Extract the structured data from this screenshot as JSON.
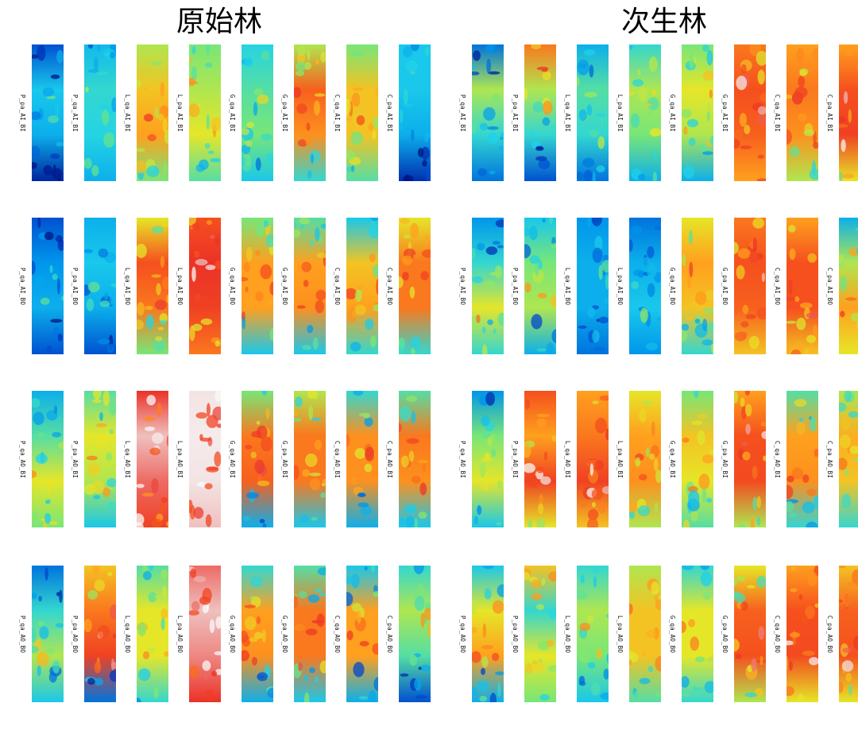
{
  "panels": [
    {
      "title": "原始林",
      "rows": [
        [
          "P_pa_AI_BI",
          "P_qa_AI_BI",
          "L_qa_AI_BI",
          "L_pa_AI_BI",
          "G_qa_AI_BI",
          "G_pa_AI_BI",
          "C_qa_AI_BI",
          "C_pa_AI_BI"
        ],
        [
          "P_qa_AI_BO",
          "P_pa_AI_BO",
          "L_qa_AI_BO",
          "L_pa_AI_BO",
          "G_qa_AI_BO",
          "G_pa_AI_BO",
          "C_qa_AI_BO",
          "C_pa_AI_BO"
        ],
        [
          "P_qa_AO_BI",
          "P_pa_AO_BI",
          "L_qa_AO_BI",
          "L_pa_AO_BI",
          "G_qa_AO_BI",
          "G_pa_AO_BI",
          "C_qa_AO_BI",
          "C_pa_AO_BI"
        ],
        [
          "P_qa_AO_BO",
          "P_pa_AO_BO",
          "L_qa_AO_BO",
          "L_pa_AO_BO",
          "G_qa_AO_BO",
          "G_pa_AO_BO",
          "C_qa_AO_BO",
          "C_pa_AO_BO"
        ]
      ],
      "levels": [
        [
          [
            0.15,
            0.35,
            0.3,
            0.05
          ],
          [
            0.32,
            0.4,
            0.38,
            0.3
          ],
          [
            0.55,
            0.65,
            0.7,
            0.5
          ],
          [
            0.5,
            0.55,
            0.6,
            0.45
          ],
          [
            0.38,
            0.45,
            0.5,
            0.35
          ],
          [
            0.55,
            0.78,
            0.72,
            0.4
          ],
          [
            0.5,
            0.65,
            0.65,
            0.45
          ],
          [
            0.35,
            0.35,
            0.3,
            0.08
          ]
        ],
        [
          [
            0.15,
            0.25,
            0.3,
            0.15
          ],
          [
            0.3,
            0.35,
            0.3,
            0.15
          ],
          [
            0.6,
            0.8,
            0.75,
            0.5
          ],
          [
            0.8,
            0.9,
            0.85,
            0.75
          ],
          [
            0.5,
            0.7,
            0.7,
            0.35
          ],
          [
            0.45,
            0.7,
            0.72,
            0.35
          ],
          [
            0.35,
            0.65,
            0.7,
            0.4
          ],
          [
            0.6,
            0.75,
            0.75,
            0.4
          ]
        ],
        [
          [
            0.3,
            0.45,
            0.6,
            0.5
          ],
          [
            0.45,
            0.6,
            0.55,
            0.35
          ],
          [
            0.9,
            0.95,
            0.92,
            0.85
          ],
          [
            0.97,
            0.98,
            0.97,
            0.95
          ],
          [
            0.5,
            0.75,
            0.78,
            0.3
          ],
          [
            0.55,
            0.75,
            0.75,
            0.35
          ],
          [
            0.4,
            0.72,
            0.72,
            0.3
          ],
          [
            0.45,
            0.75,
            0.72,
            0.35
          ]
        ],
        [
          [
            0.2,
            0.4,
            0.55,
            0.35
          ],
          [
            0.65,
            0.75,
            0.85,
            0.2
          ],
          [
            0.45,
            0.6,
            0.6,
            0.4
          ],
          [
            0.92,
            0.95,
            0.93,
            0.9
          ],
          [
            0.4,
            0.7,
            0.72,
            0.3
          ],
          [
            0.45,
            0.75,
            0.75,
            0.35
          ],
          [
            0.35,
            0.7,
            0.7,
            0.3
          ],
          [
            0.4,
            0.55,
            0.45,
            0.15
          ]
        ]
      ]
    },
    {
      "title": "次生林",
      "rows": [
        [
          "P_qa_AI_BI",
          "P_pa_AI_BI",
          "L_qa_AI_BI",
          "L_pa_AI_BI",
          "G_qa_AI_BI",
          "G_pa_AI_BI",
          "C_qa_AI_BI",
          "C_pa_AI_BI"
        ],
        [
          "P_qa_AI_BO",
          "P_pa_AI_BO",
          "L_qa_AI_BO",
          "L_pa_AI_BO",
          "G_qa_AI_BO",
          "G_pa_AI_BO",
          "C_qa_AI_BO",
          "C_pa_AI_BO"
        ],
        [
          "P_qa_AO_BI",
          "P_pa_AO_BI",
          "L_qa_AO_BI",
          "L_pa_AO_BI",
          "G_qa_AO_BI",
          "G_pa_AO_BI",
          "C_qa_AO_BI",
          "C_pa_AO_BI"
        ],
        [
          "P_qa_AO_BO",
          "P_pa_AO_BO",
          "L_qa_AO_BO",
          "L_pa_AO_BO",
          "G_qa_AO_BO",
          "G_pa_AO_BO",
          "C_qa_AO_BO",
          "C_pa_AO_BO"
        ]
      ],
      "levels": [
        [
          [
            0.2,
            0.55,
            0.4,
            0.2
          ],
          [
            0.75,
            0.55,
            0.4,
            0.15
          ],
          [
            0.3,
            0.45,
            0.4,
            0.2
          ],
          [
            0.4,
            0.55,
            0.5,
            0.3
          ],
          [
            0.5,
            0.6,
            0.55,
            0.3
          ],
          [
            0.75,
            0.8,
            0.78,
            0.7
          ],
          [
            0.7,
            0.75,
            0.72,
            0.55
          ],
          [
            0.7,
            0.8,
            0.85,
            0.6
          ]
        ],
        [
          [
            0.25,
            0.4,
            0.6,
            0.4
          ],
          [
            0.35,
            0.5,
            0.55,
            0.3
          ],
          [
            0.25,
            0.3,
            0.3,
            0.2
          ],
          [
            0.2,
            0.3,
            0.35,
            0.25
          ],
          [
            0.6,
            0.7,
            0.65,
            0.4
          ],
          [
            0.75,
            0.8,
            0.78,
            0.65
          ],
          [
            0.7,
            0.8,
            0.8,
            0.65
          ],
          [
            0.3,
            0.55,
            0.7,
            0.6
          ]
        ],
        [
          [
            0.25,
            0.5,
            0.6,
            0.35
          ],
          [
            0.8,
            0.7,
            0.85,
            0.6
          ],
          [
            0.7,
            0.75,
            0.85,
            0.65
          ],
          [
            0.6,
            0.7,
            0.72,
            0.55
          ],
          [
            0.5,
            0.65,
            0.6,
            0.45
          ],
          [
            0.7,
            0.8,
            0.82,
            0.55
          ],
          [
            0.45,
            0.7,
            0.72,
            0.4
          ],
          [
            0.55,
            0.68,
            0.65,
            0.4
          ]
        ],
        [
          [
            0.35,
            0.6,
            0.7,
            0.3
          ],
          [
            0.65,
            0.4,
            0.6,
            0.5
          ],
          [
            0.4,
            0.55,
            0.5,
            0.35
          ],
          [
            0.55,
            0.65,
            0.65,
            0.45
          ],
          [
            0.4,
            0.6,
            0.6,
            0.4
          ],
          [
            0.6,
            0.78,
            0.8,
            0.55
          ],
          [
            0.7,
            0.8,
            0.82,
            0.6
          ],
          [
            0.65,
            0.78,
            0.8,
            0.6
          ]
        ]
      ]
    }
  ]
}
